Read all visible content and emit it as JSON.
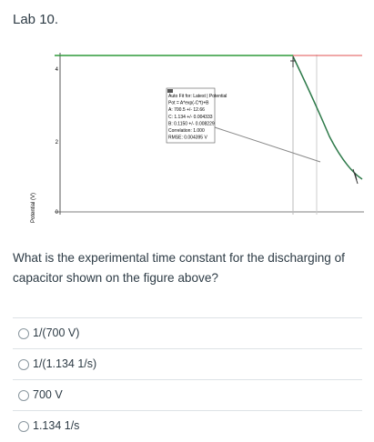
{
  "header": {
    "title": "Lab 10."
  },
  "figure": {
    "y_axis_label": "Potential (V)",
    "yticks": [
      "4",
      "2",
      "0"
    ],
    "fit_box": [
      "Auto Fit for: Latest | Potential",
      "Pot = A*exp(-C*t)+B",
      "A: 700.5 +/- 12.66",
      "C: 1.134 +/- 0.004333",
      "B: 0.1150 +/- 0.008229",
      "Correlation: 1.000",
      "RMSE: 0.004395 V"
    ]
  },
  "question": {
    "text": "What is the experimental time constant for the discharging of capacitor shown on the figure above?",
    "options": [
      "1/(700 V)",
      "1/(1.134 1/s)",
      "700 V",
      "1.134 1/s"
    ]
  }
}
